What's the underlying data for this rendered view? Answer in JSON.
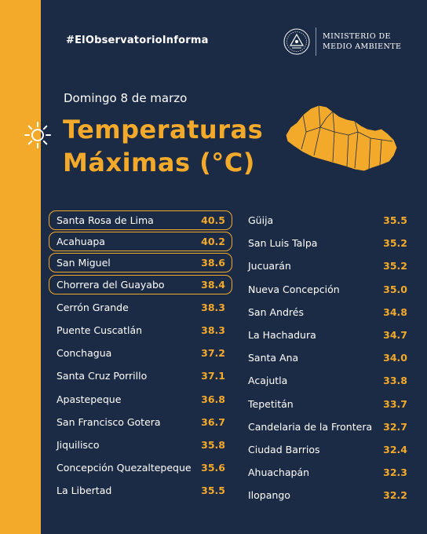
{
  "header": {
    "hashtag": "#ElObservatorioInforma",
    "ministry_line1": "MINISTERIO DE",
    "ministry_line2": "MEDIO AMBIENTE"
  },
  "date": "Domingo 8 de marzo",
  "title_line1": "Temperaturas",
  "title_line2": "Máximas (°C)",
  "colors": {
    "accent": "#f3a92a",
    "background": "#1c2b45",
    "text": "#ffffff"
  },
  "left_list": [
    {
      "name": "Santa Rosa de Lima",
      "value": "40.5",
      "highlight": true
    },
    {
      "name": "Acahuapa",
      "value": "40.2",
      "highlight": true
    },
    {
      "name": "San Miguel",
      "value": "38.6",
      "highlight": true
    },
    {
      "name": "Chorrera del Guayabo",
      "value": "38.4",
      "highlight": true
    },
    {
      "name": "Cerrón Grande",
      "value": "38.3",
      "highlight": false
    },
    {
      "name": "Puente Cuscatlán",
      "value": "38.3",
      "highlight": false
    },
    {
      "name": "Conchagua",
      "value": "37.2",
      "highlight": false
    },
    {
      "name": "Santa Cruz Porrillo",
      "value": "37.1",
      "highlight": false
    },
    {
      "name": "Apastepeque",
      "value": "36.8",
      "highlight": false
    },
    {
      "name": "San Francisco Gotera",
      "value": "36.7",
      "highlight": false
    },
    {
      "name": "Jiquilisco",
      "value": "35.8",
      "highlight": false
    },
    {
      "name": "Concepción Quezaltepeque",
      "value": "35.6",
      "highlight": false
    },
    {
      "name": "La Libertad",
      "value": "35.5",
      "highlight": false
    }
  ],
  "right_list": [
    {
      "name": "Güija",
      "value": "35.5"
    },
    {
      "name": "San Luis Talpa",
      "value": "35.2"
    },
    {
      "name": "Jucuarán",
      "value": "35.2"
    },
    {
      "name": "Nueva Concepción",
      "value": "35.0"
    },
    {
      "name": "San Andrés",
      "value": "34.8"
    },
    {
      "name": "La Hachadura",
      "value": "34.7"
    },
    {
      "name": "Santa Ana",
      "value": "34.0"
    },
    {
      "name": "Acajutla",
      "value": "33.8"
    },
    {
      "name": "Tepetitán",
      "value": "33.7"
    },
    {
      "name": "Candelaria de la Frontera",
      "value": "32.7"
    },
    {
      "name": "Ciudad Barrios",
      "value": "32.4"
    },
    {
      "name": "Ahuachapán",
      "value": "32.3"
    },
    {
      "name": "Ilopango",
      "value": "32.2"
    }
  ]
}
